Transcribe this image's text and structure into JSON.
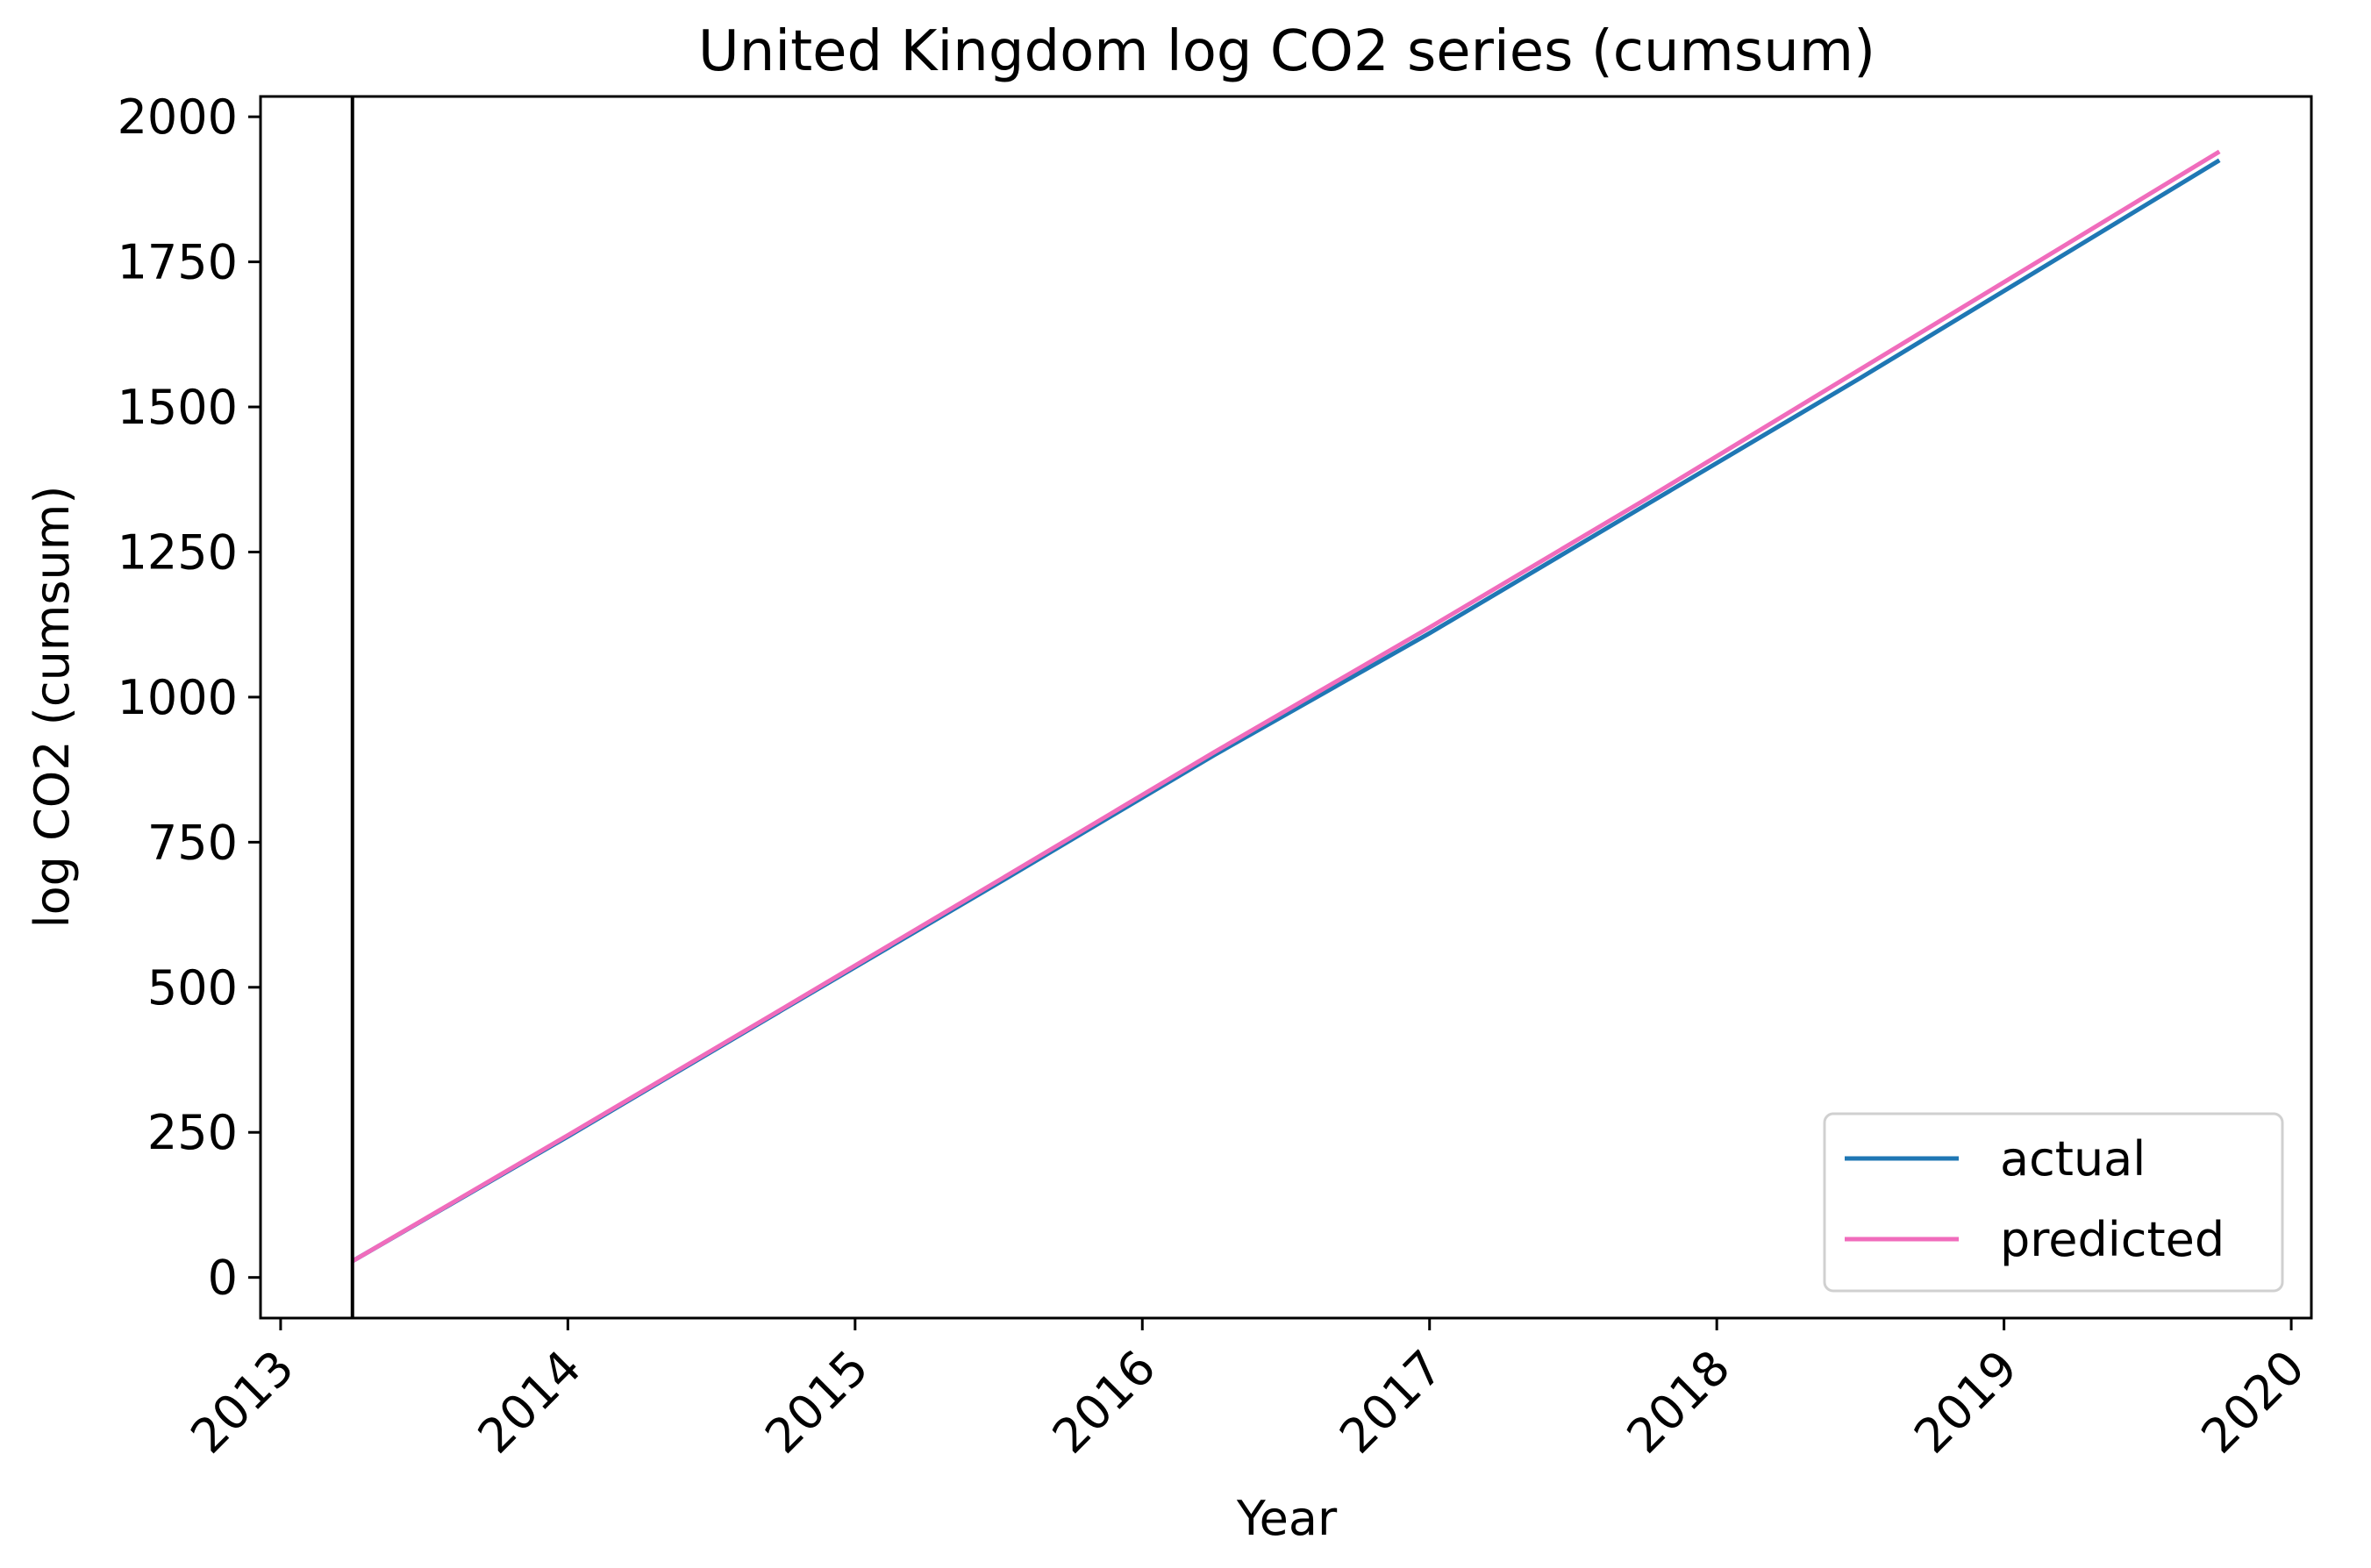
{
  "chart_data": {
    "type": "line",
    "title": "United Kingdom log CO2 series (cumsum)",
    "xlabel": "Year",
    "ylabel": "log CO2 (cumsum)",
    "xlim": [
      2012.93,
      2020.07
    ],
    "ylim": [
      -70,
      2035
    ],
    "x_ticks": [
      2013,
      2014,
      2015,
      2016,
      2017,
      2018,
      2019,
      2020
    ],
    "y_ticks": [
      0,
      250,
      500,
      750,
      1000,
      1250,
      1500,
      1750,
      2000
    ],
    "vline_x": 2013.25,
    "grid": false,
    "legend_position": "lower-right",
    "series": [
      {
        "name": "actual",
        "color": "#1f77b4",
        "x": [
          2013.25,
          2014.0,
          2014.75,
          2015.5,
          2016.25,
          2017.0,
          2017.75,
          2018.5,
          2019.25,
          2019.75
        ],
        "y": [
          28,
          243,
          462,
          680,
          900,
          1110,
          1330,
          1550,
          1775,
          1925
        ]
      },
      {
        "name": "predicted",
        "color": "#f06cbc",
        "x": [
          2013.25,
          2014.0,
          2014.75,
          2015.5,
          2016.25,
          2017.0,
          2017.75,
          2018.5,
          2019.25,
          2019.75
        ],
        "y": [
          28,
          245,
          464,
          684,
          905,
          1120,
          1340,
          1565,
          1790,
          1940
        ]
      }
    ]
  }
}
